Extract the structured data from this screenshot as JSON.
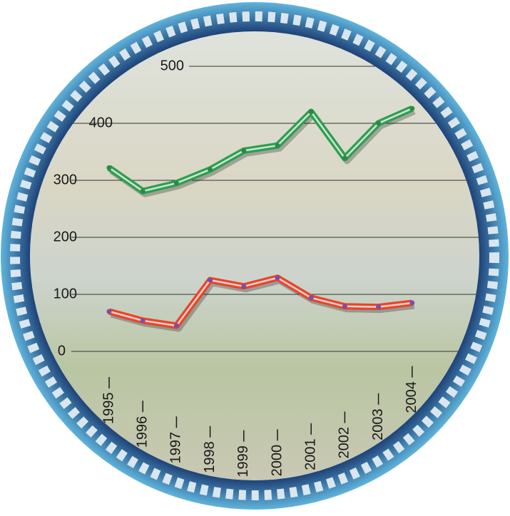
{
  "chart_data": {
    "type": "line",
    "categories": [
      "1995",
      "1996",
      "1997",
      "1998",
      "1999",
      "2000",
      "2001",
      "2002",
      "2003",
      "2004"
    ],
    "series": [
      {
        "color": "#2e9e4f",
        "values": [
          322,
          281,
          295,
          319,
          352,
          361,
          420,
          339,
          400,
          426
        ]
      },
      {
        "color": "#e8452c",
        "values": [
          70,
          54,
          45,
          125,
          114,
          129,
          94,
          79,
          78,
          85
        ]
      }
    ],
    "ylim": [
      0,
      500
    ],
    "yticks": [
      0,
      100,
      200,
      300,
      400,
      500
    ],
    "grid": true
  }
}
